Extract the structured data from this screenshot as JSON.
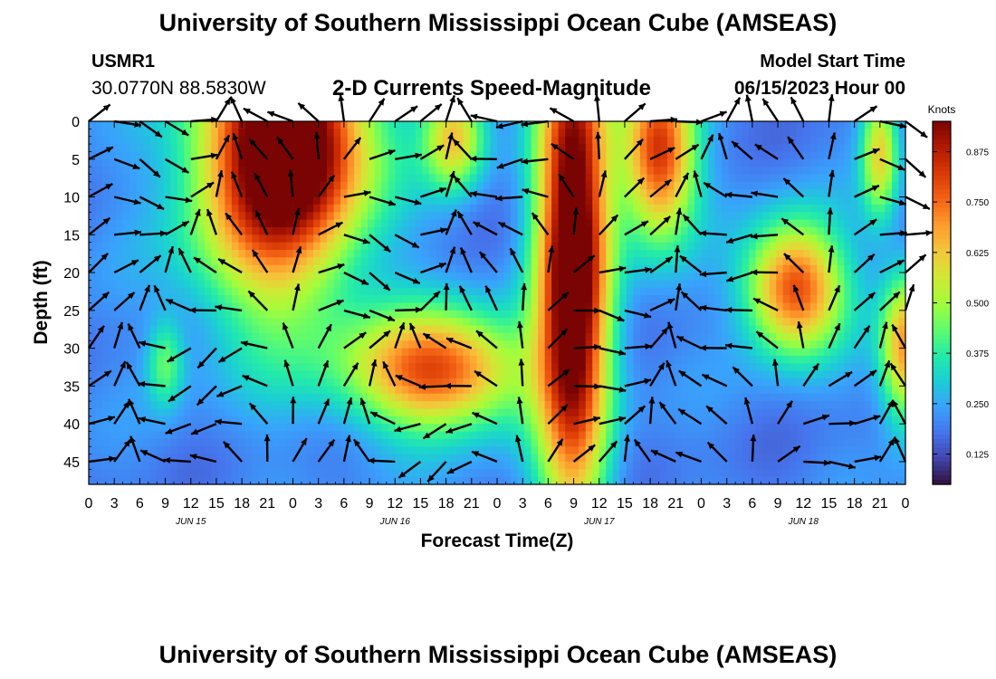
{
  "header": {
    "main_title": "University of Southern Mississippi Ocean Cube (AMSEAS)",
    "station_id": "USMR1",
    "coordinates": "30.0770N  88.5830W",
    "chart_title": "2-D Currents Speed-Magnitude",
    "model_start_label": "Model Start Time",
    "model_start_value": "06/15/2023 Hour 00"
  },
  "footer": {
    "title": "University of Southern Mississippi Ocean Cube (AMSEAS)"
  },
  "colors": {
    "background": "#ffffff",
    "arrow": "#000000",
    "colormap": [
      "#30123b",
      "#4145ab",
      "#4675ed",
      "#39a2fc",
      "#1bcfd4",
      "#24eca6",
      "#61fc6c",
      "#a4fc3b",
      "#d1e834",
      "#f3c63a",
      "#fe9b2d",
      "#f36315",
      "#d93806",
      "#b11901",
      "#7a0403"
    ]
  },
  "chart_data": {
    "type": "heatmap",
    "title": "2-D Currents Speed-Magnitude",
    "xlabel": "Forecast Time(Z)",
    "ylabel": "Depth (ft)",
    "x_range_hours": [
      0,
      96
    ],
    "x_tick_labels": [
      "0",
      "3",
      "6",
      "9",
      "12",
      "15",
      "18",
      "21",
      "0",
      "3",
      "6",
      "9",
      "12",
      "15",
      "18",
      "21",
      "0",
      "3",
      "6",
      "9",
      "12",
      "15",
      "18",
      "21",
      "0",
      "3",
      "6",
      "9",
      "12",
      "15",
      "18",
      "21",
      "0"
    ],
    "date_labels": [
      {
        "label": "JUN 15",
        "hour": 12
      },
      {
        "label": "JUN 16",
        "hour": 36
      },
      {
        "label": "JUN 17",
        "hour": 60
      },
      {
        "label": "JUN 18",
        "hour": 84
      }
    ],
    "y_range_ft": [
      0,
      48
    ],
    "y_ticks": [
      0,
      5,
      10,
      15,
      20,
      25,
      30,
      35,
      40,
      45
    ],
    "colorbar": {
      "unit": "Knots",
      "range": [
        0.05,
        0.95
      ],
      "ticks": [
        0.125,
        0.25,
        0.375,
        0.5,
        0.625,
        0.75,
        0.875
      ],
      "tick_labels": [
        "0.125",
        "0.250",
        "0.375",
        "0.500",
        "0.625",
        "0.750",
        "0.875"
      ]
    },
    "speed_blobs_knots": [
      {
        "t": 9,
        "d": 32,
        "sx": 1.5,
        "sy": 4,
        "a": 0.22
      },
      {
        "t": 22,
        "d": 6,
        "sx": 7,
        "sy": 14,
        "a": 0.7
      },
      {
        "t": 25,
        "d": 2,
        "sx": 6,
        "sy": 8,
        "a": 0.35
      },
      {
        "t": 41,
        "d": 33,
        "sx": 7.5,
        "sy": 5.5,
        "a": 0.6
      },
      {
        "t": 43,
        "d": 2,
        "sx": 2.5,
        "sy": 5,
        "a": 0.42
      },
      {
        "t": 57,
        "d": 18,
        "sx": 3,
        "sy": 24,
        "a": 0.9
      },
      {
        "t": 67,
        "d": 4,
        "sx": 3,
        "sy": 8,
        "a": 0.65
      },
      {
        "t": 83,
        "d": 22,
        "sx": 4,
        "sy": 6,
        "a": 0.62
      },
      {
        "t": 93,
        "d": 4,
        "sx": 1.5,
        "sy": 6,
        "a": 0.4
      },
      {
        "t": 96,
        "d": 30,
        "sx": 2,
        "sy": 7,
        "a": 0.5
      }
    ],
    "vector_grid": {
      "time_step_hours": 3,
      "depths_ft": [
        0,
        5,
        10,
        15,
        20,
        25,
        30,
        35,
        40,
        45
      ]
    }
  }
}
